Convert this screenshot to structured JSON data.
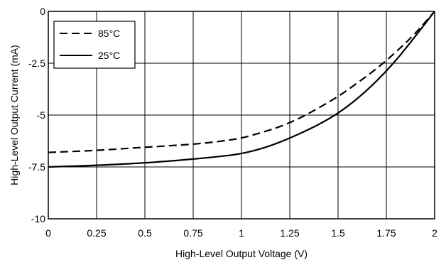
{
  "chart_data": {
    "type": "line",
    "title": "",
    "xlabel": "High-Level Output Voltage (V)",
    "ylabel": "High-Level Output Current (mA)",
    "xlim": [
      0,
      2
    ],
    "ylim": [
      -10,
      0
    ],
    "x_ticks": [
      0,
      0.25,
      0.5,
      0.75,
      1,
      1.25,
      1.5,
      1.75,
      2
    ],
    "x_tick_labels": [
      "0",
      "0.25",
      "0.5",
      "0.75",
      "1",
      "1.25",
      "1.5",
      "1.75",
      "2"
    ],
    "y_ticks": [
      0,
      -2.5,
      -5,
      -7.5,
      -10
    ],
    "y_tick_labels": [
      "0",
      "-2.5",
      "-5",
      "-7.5",
      "-10"
    ],
    "grid": true,
    "legend_position": "top-left",
    "series": [
      {
        "name": "85°C",
        "style": "dashed",
        "color": "#000000",
        "x": [
          0,
          0.25,
          0.5,
          0.75,
          0.9,
          1.0,
          1.1,
          1.2,
          1.3,
          1.4,
          1.5,
          1.6,
          1.7,
          1.8,
          1.9,
          2.0
        ],
        "y": [
          -6.8,
          -6.7,
          -6.55,
          -6.4,
          -6.25,
          -6.1,
          -5.85,
          -5.55,
          -5.15,
          -4.65,
          -4.1,
          -3.45,
          -2.75,
          -1.95,
          -1.05,
          0
        ]
      },
      {
        "name": "25°C",
        "style": "solid",
        "color": "#000000",
        "x": [
          0,
          0.25,
          0.5,
          0.75,
          0.9,
          1.0,
          1.1,
          1.2,
          1.3,
          1.4,
          1.5,
          1.6,
          1.7,
          1.8,
          1.9,
          2.0
        ],
        "y": [
          -7.5,
          -7.42,
          -7.3,
          -7.12,
          -6.98,
          -6.85,
          -6.62,
          -6.3,
          -5.9,
          -5.45,
          -4.9,
          -4.2,
          -3.35,
          -2.35,
          -1.2,
          0
        ]
      }
    ]
  }
}
